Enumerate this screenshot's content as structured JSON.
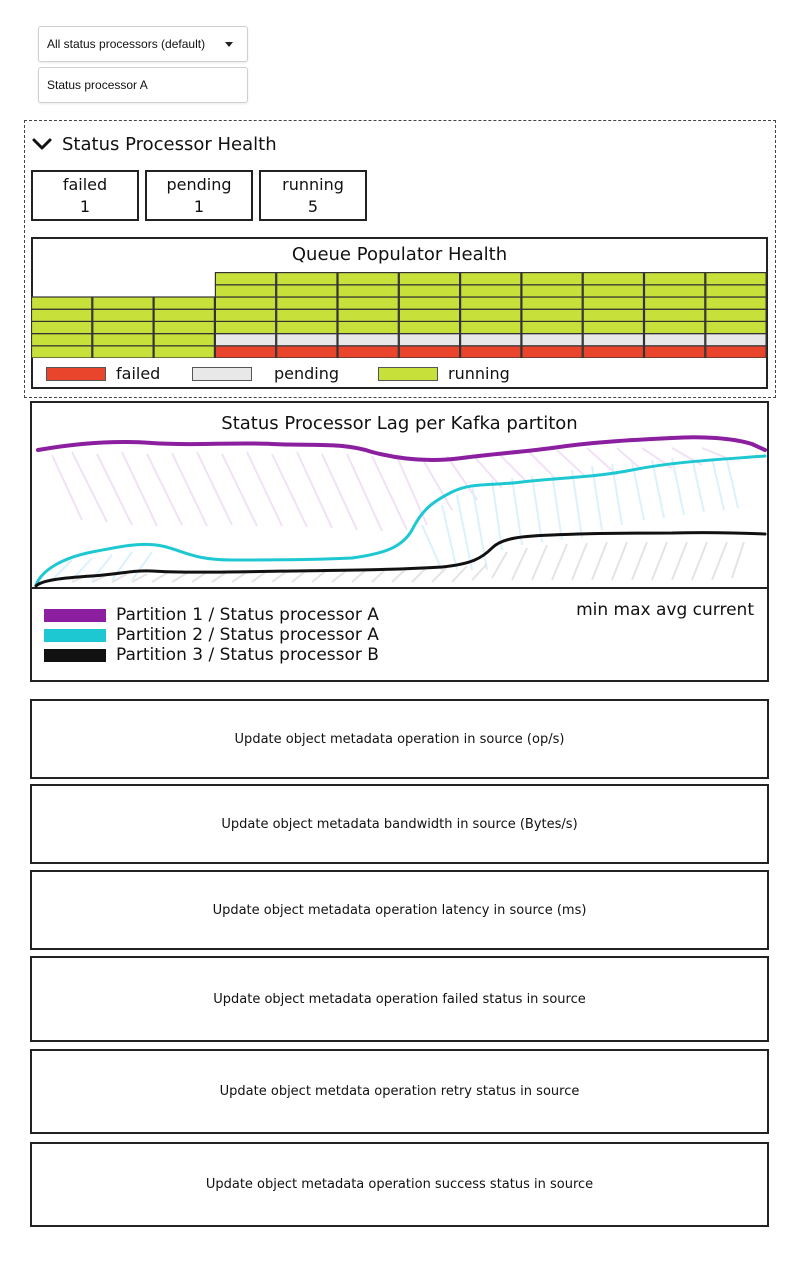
{
  "filters": {
    "processor_select": "All status processors (default)",
    "processor_option": "Status processor A"
  },
  "health": {
    "title": "Status Processor Health",
    "stats": [
      {
        "label": "failed",
        "value": "1"
      },
      {
        "label": "pending",
        "value": "1"
      },
      {
        "label": "running",
        "value": "5"
      }
    ]
  },
  "queue_populator": {
    "title": "Queue Populator Health",
    "legend": [
      {
        "label": "failed",
        "color": "#e8452c"
      },
      {
        "label": "pending",
        "color": "#e8e8e8"
      },
      {
        "label": "running",
        "color": "#c8e03a"
      }
    ]
  },
  "chart_data": {
    "type": "area",
    "title": "Status Processor Lag per Kafka partiton",
    "legend_header": "min max avg current",
    "series": [
      {
        "name": "Partition 1 / Status processor A",
        "color": "#8b1fa0"
      },
      {
        "name": "Partition 2 / Status processor A",
        "color": "#1ec8d2"
      },
      {
        "name": "Partition 3 / Status processor B",
        "color": "#111111"
      }
    ]
  },
  "metrics": [
    "Update object metadata operation in source (op/s)",
    "Update object metadata bandwidth in source (Bytes/s)",
    "Update object metadata operation latency in source (ms)",
    "Update object metadata operation failed status in source",
    "Update object metdata operation retry status in source",
    "Update object metadata operation success status in source"
  ]
}
